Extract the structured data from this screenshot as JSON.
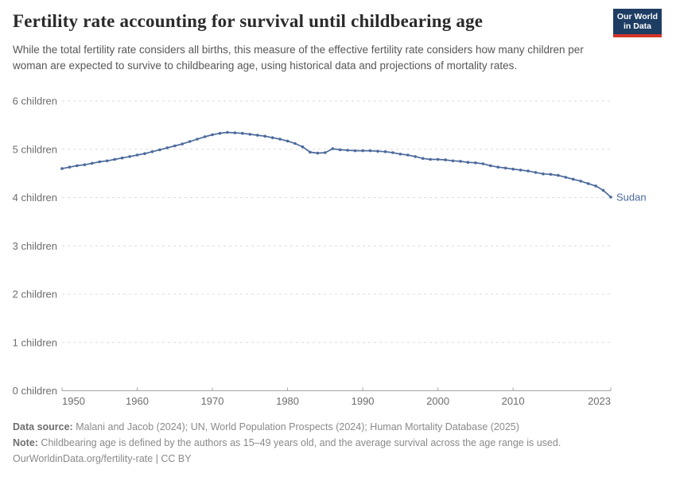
{
  "header": {
    "title": "Fertility rate accounting for survival until childbearing age",
    "subtitle": "While the total fertility rate considers all births, this measure of the effective fertility rate considers how many children per woman are expected to survive to childbearing age, using historical data and projections of mortality rates.",
    "logo": {
      "line1": "Our World",
      "line2": "in Data",
      "bg_color": "#1d3d63",
      "accent_color": "#d2342a"
    }
  },
  "chart_data": {
    "type": "line",
    "title": "Fertility rate accounting for survival until childbearing age",
    "xlabel": "",
    "ylabel": "children",
    "xlim": [
      1950,
      2023
    ],
    "ylim": [
      0,
      6
    ],
    "grid": "horizontal-dashed",
    "legend_position": "end-of-line",
    "x_ticks": [
      1950,
      1960,
      1970,
      1980,
      1990,
      2000,
      2010,
      2023
    ],
    "y_axis": [
      {
        "value": 0,
        "label": "0 children"
      },
      {
        "value": 1,
        "label": "1 children"
      },
      {
        "value": 2,
        "label": "2 children"
      },
      {
        "value": 3,
        "label": "3 children"
      },
      {
        "value": 4,
        "label": "4 children"
      },
      {
        "value": 5,
        "label": "5 children"
      },
      {
        "value": 6,
        "label": "6 children"
      }
    ],
    "series": [
      {
        "name": "Sudan",
        "color": "#4c6a9c",
        "x": [
          1950,
          1951,
          1952,
          1953,
          1954,
          1955,
          1956,
          1957,
          1958,
          1959,
          1960,
          1961,
          1962,
          1963,
          1964,
          1965,
          1966,
          1967,
          1968,
          1969,
          1970,
          1971,
          1972,
          1973,
          1974,
          1975,
          1976,
          1977,
          1978,
          1979,
          1980,
          1981,
          1982,
          1983,
          1984,
          1985,
          1986,
          1987,
          1988,
          1989,
          1990,
          1991,
          1992,
          1993,
          1994,
          1995,
          1996,
          1997,
          1998,
          1999,
          2000,
          2001,
          2002,
          2003,
          2004,
          2005,
          2006,
          2007,
          2008,
          2009,
          2010,
          2011,
          2012,
          2013,
          2014,
          2015,
          2016,
          2017,
          2018,
          2019,
          2020,
          2021,
          2022,
          2023
        ],
        "values": [
          4.6,
          4.63,
          4.66,
          4.68,
          4.71,
          4.74,
          4.76,
          4.79,
          4.82,
          4.85,
          4.88,
          4.91,
          4.95,
          4.99,
          5.03,
          5.07,
          5.11,
          5.16,
          5.21,
          5.26,
          5.3,
          5.33,
          5.35,
          5.34,
          5.33,
          5.31,
          5.29,
          5.27,
          5.24,
          5.21,
          5.17,
          5.12,
          5.05,
          4.94,
          4.92,
          4.93,
          5.01,
          4.99,
          4.98,
          4.97,
          4.97,
          4.97,
          4.96,
          4.95,
          4.93,
          4.9,
          4.88,
          4.85,
          4.81,
          4.79,
          4.79,
          4.78,
          4.76,
          4.75,
          4.73,
          4.72,
          4.7,
          4.66,
          4.63,
          4.61,
          4.59,
          4.57,
          4.55,
          4.52,
          4.49,
          4.48,
          4.46,
          4.42,
          4.38,
          4.34,
          4.29,
          4.24,
          4.15,
          4.01
        ]
      }
    ]
  },
  "footer": {
    "data_source_label": "Data source:",
    "data_source_text": " Malani and Jacob (2024); UN, World Population Prospects (2024); Human Mortality Database (2025)",
    "note_label": "Note:",
    "note_text": " Childbearing age is defined by the authors as 15–49 years old, and the average survival across the age range is used.",
    "link_text": "OurWorldinData.org/fertility-rate | CC BY"
  }
}
